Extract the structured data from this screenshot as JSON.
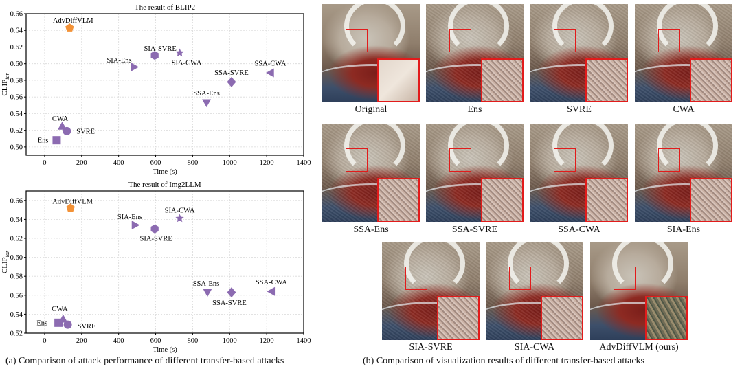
{
  "chart_data": [
    {
      "type": "scatter",
      "title": "The result of BLIP2",
      "xlabel": "Time (s)",
      "ylabel": "CLIP",
      "ylabel_sub": "tar",
      "xlim": [
        -100,
        1400
      ],
      "ylim": [
        0.49,
        0.66
      ],
      "xticks": [
        0,
        200,
        400,
        600,
        800,
        1000,
        1200,
        1400
      ],
      "yticks": [
        0.5,
        0.52,
        0.54,
        0.56,
        0.58,
        0.6,
        0.62,
        0.64,
        0.66
      ],
      "grid": true,
      "points": [
        {
          "label": "Ens",
          "x": 65,
          "y": 0.508,
          "marker": "square",
          "color": "#8c6bb1"
        },
        {
          "label": "CWA",
          "x": 95,
          "y": 0.525,
          "marker": "triangle-up",
          "color": "#8c6bb1"
        },
        {
          "label": "SVRE",
          "x": 120,
          "y": 0.519,
          "marker": "circle",
          "color": "#8c6bb1"
        },
        {
          "label": "AdvDiffVLM",
          "x": 135,
          "y": 0.643,
          "marker": "pentagon",
          "color": "#f39237"
        },
        {
          "label": "SIA-Ens",
          "x": 485,
          "y": 0.596,
          "marker": "triangle-right",
          "color": "#8c6bb1"
        },
        {
          "label": "SIA-SVRE",
          "x": 595,
          "y": 0.61,
          "marker": "hexagon",
          "color": "#8c6bb1"
        },
        {
          "label": "SIA-CWA",
          "x": 730,
          "y": 0.613,
          "marker": "star",
          "color": "#8c6bb1"
        },
        {
          "label": "SSA-Ens",
          "x": 875,
          "y": 0.553,
          "marker": "triangle-down",
          "color": "#8c6bb1"
        },
        {
          "label": "SSA-SVRE",
          "x": 1010,
          "y": 0.578,
          "marker": "diamond",
          "color": "#8c6bb1"
        },
        {
          "label": "SSA-CWA",
          "x": 1220,
          "y": 0.589,
          "marker": "triangle-left",
          "color": "#8c6bb1"
        }
      ]
    },
    {
      "type": "scatter",
      "title": "The result of Img2LLM",
      "xlabel": "Time (s)",
      "ylabel": "CLIP",
      "ylabel_sub": "tar",
      "xlim": [
        -100,
        1400
      ],
      "ylim": [
        0.52,
        0.67
      ],
      "xticks": [
        0,
        200,
        400,
        600,
        800,
        1000,
        1200,
        1400
      ],
      "yticks": [
        0.52,
        0.54,
        0.56,
        0.58,
        0.6,
        0.62,
        0.64,
        0.66
      ],
      "grid": true,
      "points": [
        {
          "label": "Ens",
          "x": 75,
          "y": 0.531,
          "marker": "square",
          "color": "#8c6bb1"
        },
        {
          "label": "CWA",
          "x": 100,
          "y": 0.535,
          "marker": "triangle-up",
          "color": "#8c6bb1"
        },
        {
          "label": "SVRE",
          "x": 125,
          "y": 0.529,
          "marker": "circle",
          "color": "#8c6bb1"
        },
        {
          "label": "AdvDiffVLM",
          "x": 140,
          "y": 0.652,
          "marker": "pentagon",
          "color": "#f39237"
        },
        {
          "label": "SIA-Ens",
          "x": 490,
          "y": 0.634,
          "marker": "triangle-right",
          "color": "#8c6bb1"
        },
        {
          "label": "SIA-SVRE",
          "x": 595,
          "y": 0.63,
          "marker": "hexagon",
          "color": "#8c6bb1"
        },
        {
          "label": "SIA-CWA",
          "x": 730,
          "y": 0.641,
          "marker": "star",
          "color": "#8c6bb1"
        },
        {
          "label": "SSA-Ens",
          "x": 880,
          "y": 0.563,
          "marker": "triangle-down",
          "color": "#8c6bb1"
        },
        {
          "label": "SSA-SVRE",
          "x": 1010,
          "y": 0.563,
          "marker": "diamond",
          "color": "#8c6bb1"
        },
        {
          "label": "SSA-CWA",
          "x": 1225,
          "y": 0.564,
          "marker": "triangle-left",
          "color": "#8c6bb1"
        }
      ]
    }
  ],
  "captions": {
    "a": "(a) Comparison of attack performance of different transfer-based attacks",
    "b": "(b) Comparison of visualization results of different transfer-based attacks"
  },
  "images": [
    {
      "label": "Original"
    },
    {
      "label": "Ens"
    },
    {
      "label": "SVRE"
    },
    {
      "label": "CWA"
    },
    {
      "label": "SSA-Ens"
    },
    {
      "label": "SSA-SVRE"
    },
    {
      "label": "SSA-CWA"
    },
    {
      "label": "SIA-Ens"
    },
    {
      "label": "SIA-SVRE"
    },
    {
      "label": "SIA-CWA"
    },
    {
      "label": "AdvDiffVLM (ours)"
    }
  ]
}
